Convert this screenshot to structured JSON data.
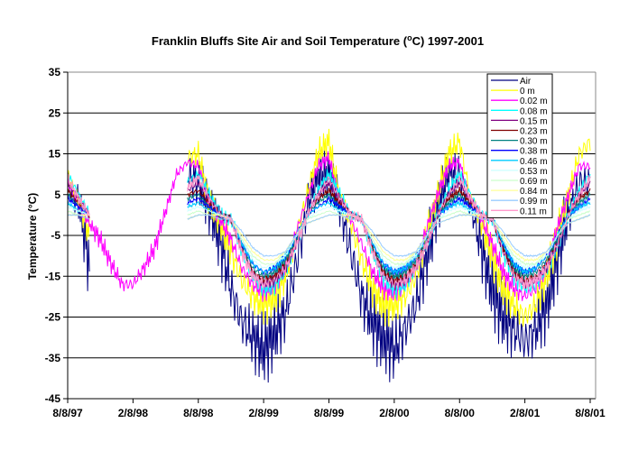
{
  "chart_data": {
    "type": "line",
    "title": "Franklin Bluffs Site Air and Soil Temperature (°C) 1997-2001",
    "title_parts": {
      "pre": "Franklin Bluffs Site Air and Soil Temperature (",
      "deg": "o",
      "post": "C) 1997-2001"
    },
    "xlabel": "",
    "ylabel": "Temperature (°C)",
    "ylabel_parts": {
      "pre": "Temperature (",
      "deg": "o",
      "post": "C)"
    },
    "ylim": [
      -45,
      35
    ],
    "yticks": [
      35,
      25,
      15,
      5,
      -5,
      -15,
      -25,
      -35,
      -45
    ],
    "ytick_labels": [
      "35",
      "25",
      "15",
      "5",
      "-5",
      "-15",
      "-25",
      "-35",
      "-45"
    ],
    "xlim_months": [
      0,
      48
    ],
    "xticks_months": [
      0,
      6,
      12,
      18,
      24,
      30,
      36,
      42,
      48
    ],
    "xtick_labels": [
      "8/8/97",
      "2/8/98",
      "8/8/98",
      "2/8/99",
      "8/8/99",
      "2/8/00",
      "8/8/00",
      "2/8/01",
      "8/8/01"
    ],
    "grid": true,
    "legend_position": "top-right",
    "series": [
      {
        "name": "Air",
        "color": "#000080",
        "values": [
          8,
          3,
          -12,
          null,
          null,
          null,
          null,
          null,
          null,
          null,
          null,
          10,
          8,
          2,
          -6,
          -18,
          -26,
          -30,
          -33,
          -29,
          -24,
          -12,
          2,
          9,
          10,
          2,
          -9,
          -20,
          -26,
          -30,
          -33,
          -28,
          -22,
          -10,
          2,
          10,
          10,
          3,
          -8,
          -18,
          -25,
          -28,
          -31,
          -28,
          -22,
          -10,
          0,
          8,
          8
        ]
      },
      {
        "name": "0 m",
        "color": "#ffff00",
        "values": [
          10,
          3,
          -5,
          null,
          null,
          null,
          null,
          null,
          null,
          null,
          null,
          14,
          15,
          3,
          -2,
          -9,
          -16,
          -20,
          -22,
          -20,
          -15,
          -5,
          5,
          15,
          18,
          4,
          -2,
          -11,
          -18,
          -22,
          -22,
          -20,
          -15,
          -5,
          5,
          15,
          18,
          4,
          -2,
          -10,
          -18,
          -22,
          -25,
          -22,
          -15,
          -5,
          5,
          15,
          18
        ]
      },
      {
        "name": "0.02 m",
        "color": "#ff00ff",
        "values": [
          8,
          2,
          -2,
          -6,
          -12,
          -17,
          -17,
          -13,
          -8,
          1,
          10,
          13,
          12,
          3,
          -1,
          -6,
          -13,
          -17,
          -19,
          -17,
          -13,
          -4,
          4,
          12,
          14,
          3,
          -1,
          -7,
          -14,
          -18,
          -19,
          -17,
          -12,
          -3,
          5,
          12,
          13,
          3,
          -1,
          -7,
          -14,
          -18,
          -20,
          -18,
          -13,
          -3,
          5,
          12,
          12
        ]
      },
      {
        "name": "0.08 m",
        "color": "#00ffff",
        "values": [
          10,
          5,
          0,
          null,
          null,
          null,
          null,
          null,
          null,
          null,
          null,
          8,
          10,
          5,
          0,
          -1,
          -9,
          -15,
          -18,
          -17,
          -13,
          -7,
          0,
          6,
          10,
          5,
          0,
          -1,
          -9,
          -15,
          -18,
          -17,
          -13,
          -7,
          0,
          6,
          10,
          5,
          0,
          -1,
          -9,
          -15,
          -18,
          -17,
          -13,
          -7,
          0,
          6,
          10
        ]
      },
      {
        "name": "0.15 m",
        "color": "#800080",
        "values": [
          8,
          4,
          0,
          null,
          null,
          null,
          null,
          null,
          null,
          null,
          null,
          6,
          8,
          4,
          0,
          -1,
          -8,
          -14,
          -17,
          -16,
          -13,
          -7,
          0,
          5,
          8,
          4,
          0,
          -1,
          -8,
          -14,
          -17,
          -16,
          -13,
          -7,
          0,
          5,
          8,
          4,
          0,
          -1,
          -8,
          -14,
          -17,
          -16,
          -13,
          -7,
          0,
          5,
          8
        ]
      },
      {
        "name": "0.23 m",
        "color": "#800000",
        "values": [
          6,
          3,
          0,
          null,
          null,
          null,
          null,
          null,
          null,
          null,
          null,
          5,
          6,
          3,
          0,
          -1,
          -8,
          -14,
          -16,
          -15,
          -12,
          -6,
          0,
          4,
          6,
          3,
          0,
          -1,
          -8,
          -14,
          -16,
          -15,
          -12,
          -6,
          0,
          4,
          6,
          3,
          0,
          -1,
          -8,
          -14,
          -16,
          -15,
          -12,
          -6,
          0,
          4,
          6
        ]
      },
      {
        "name": "0.30 m",
        "color": "#008080",
        "values": [
          5,
          2,
          0,
          null,
          null,
          null,
          null,
          null,
          null,
          null,
          null,
          4,
          5,
          2,
          0,
          -1,
          -7,
          -13,
          -15,
          -14,
          -11,
          -6,
          0,
          3,
          5,
          2,
          0,
          -1,
          -7,
          -13,
          -15,
          -14,
          -11,
          -6,
          0,
          3,
          5,
          2,
          0,
          -1,
          -7,
          -13,
          -15,
          -14,
          -11,
          -6,
          0,
          3,
          5
        ]
      },
      {
        "name": "0.38 m",
        "color": "#0000ff",
        "values": [
          4,
          2,
          0,
          null,
          null,
          null,
          null,
          null,
          null,
          null,
          null,
          3,
          4,
          2,
          0,
          -1,
          -7,
          -12,
          -14,
          -13,
          -10,
          -5,
          0,
          2,
          4,
          2,
          0,
          -1,
          -7,
          -12,
          -14,
          -13,
          -10,
          -5,
          0,
          2,
          4,
          2,
          0,
          -1,
          -7,
          -12,
          -14,
          -13,
          -10,
          -5,
          0,
          2,
          4
        ]
      },
      {
        "name": "0.46 m",
        "color": "#00ccff",
        "values": [
          3,
          1,
          0,
          null,
          null,
          null,
          null,
          null,
          null,
          null,
          null,
          2,
          3,
          1,
          0,
          -1,
          -7,
          -12,
          -14,
          -13,
          -10,
          -5,
          0,
          2,
          3,
          1,
          0,
          -1,
          -7,
          -12,
          -14,
          -13,
          -10,
          -5,
          0,
          2,
          3,
          1,
          0,
          -1,
          -7,
          -12,
          -14,
          -13,
          -10,
          -5,
          0,
          2,
          3
        ]
      },
      {
        "name": "0.53 m",
        "color": "#ccffff",
        "values": [
          2,
          1,
          0,
          null,
          null,
          null,
          null,
          null,
          null,
          null,
          null,
          1,
          2,
          1,
          0,
          -1,
          -6,
          -11,
          -13,
          -12,
          -10,
          -5,
          -1,
          1,
          2,
          1,
          0,
          -1,
          -6,
          -11,
          -13,
          -12,
          -10,
          -5,
          -1,
          1,
          2,
          1,
          0,
          -1,
          -6,
          -11,
          -13,
          -12,
          -10,
          -5,
          -1,
          1,
          2
        ]
      },
      {
        "name": "0.69 m",
        "color": "#ccffcc",
        "values": [
          1,
          0,
          0,
          null,
          null,
          null,
          null,
          null,
          null,
          null,
          null,
          0,
          1,
          0,
          0,
          -1,
          -6,
          -10,
          -12,
          -12,
          -9,
          -5,
          -1,
          0,
          1,
          0,
          0,
          -1,
          -6,
          -10,
          -12,
          -12,
          -9,
          -5,
          -1,
          0,
          1,
          0,
          0,
          -1,
          -6,
          -10,
          -12,
          -12,
          -9,
          -5,
          -1,
          0,
          1
        ]
      },
      {
        "name": "0.84 m",
        "color": "#ffff99",
        "values": [
          0,
          0,
          0,
          null,
          null,
          null,
          null,
          null,
          null,
          null,
          null,
          -1,
          0,
          0,
          0,
          -1,
          -5,
          -9,
          -11,
          -11,
          -9,
          -5,
          -2,
          -1,
          0,
          0,
          0,
          -1,
          -5,
          -9,
          -11,
          -11,
          -9,
          -5,
          -2,
          -1,
          0,
          0,
          0,
          -1,
          -5,
          -9,
          -11,
          -11,
          -9,
          -5,
          -2,
          -1,
          0
        ]
      },
      {
        "name": "0.99 m",
        "color": "#99ccff",
        "values": [
          0,
          0,
          -1,
          null,
          null,
          null,
          null,
          null,
          null,
          null,
          null,
          -1,
          0,
          0,
          -1,
          -1,
          -4,
          -8,
          -10,
          -10,
          -9,
          -5,
          -2,
          -1,
          0,
          0,
          -1,
          -1,
          -4,
          -8,
          -10,
          -10,
          -9,
          -5,
          -2,
          -1,
          0,
          0,
          -1,
          -1,
          -4,
          -8,
          -10,
          -10,
          -9,
          -5,
          -2,
          -1,
          0
        ]
      },
      {
        "name": "0.11 m",
        "color": "#ff99cc",
        "values": [
          9,
          4,
          0,
          null,
          null,
          null,
          null,
          null,
          null,
          null,
          null,
          7,
          9,
          4,
          0,
          -1,
          -9,
          -15,
          -17,
          -16,
          -13,
          -7,
          0,
          5,
          9,
          4,
          0,
          -1,
          -9,
          -15,
          -17,
          -16,
          -13,
          -7,
          0,
          5,
          9,
          4,
          0,
          -1,
          -9,
          -15,
          -17,
          -16,
          -13,
          -7,
          0,
          5,
          9
        ]
      }
    ]
  }
}
